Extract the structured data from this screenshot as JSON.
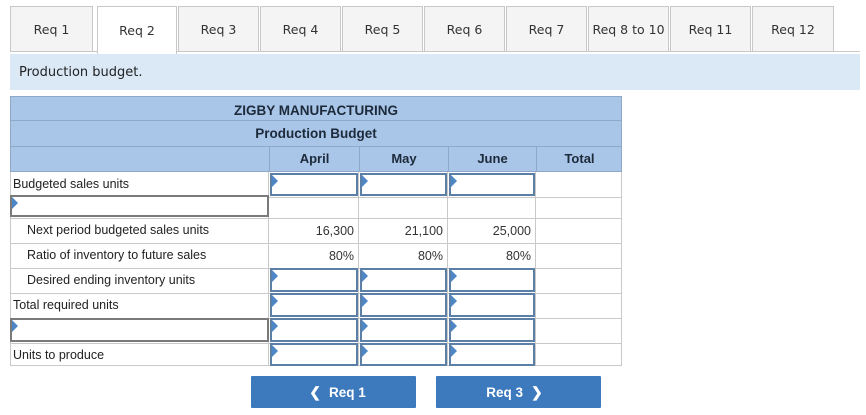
{
  "tabs": [
    "Req 1",
    "Req 2",
    "Req 3",
    "Req 4",
    "Req 5",
    "Req 6",
    "Req 7",
    "Req 8 to 10",
    "Req 11",
    "Req 12"
  ],
  "active_tab": "Req 2",
  "instruction": "Production budget.",
  "sheet": {
    "company": "ZIGBY MANUFACTURING",
    "title": "Production Budget",
    "columns": [
      "April",
      "May",
      "June",
      "Total"
    ],
    "rows": {
      "budgeted_sales": "Budgeted sales units",
      "next_period": "Next period budgeted sales units",
      "ratio": "Ratio of inventory to future sales",
      "desired_ending": "Desired ending inventory units",
      "total_required": "Total required units",
      "units_to_produce": "Units to produce"
    },
    "values": {
      "next_period": [
        "16,300",
        "21,100",
        "25,000"
      ],
      "ratio": [
        "80%",
        "80%",
        "80%"
      ]
    }
  },
  "nav": {
    "prev_label": "Req 1",
    "next_label": "Req 3"
  },
  "colors": {
    "header": "#a9c5e8",
    "banner": "#dbe9f7",
    "button": "#3d79bd",
    "input_border": "#5b7fa6"
  }
}
